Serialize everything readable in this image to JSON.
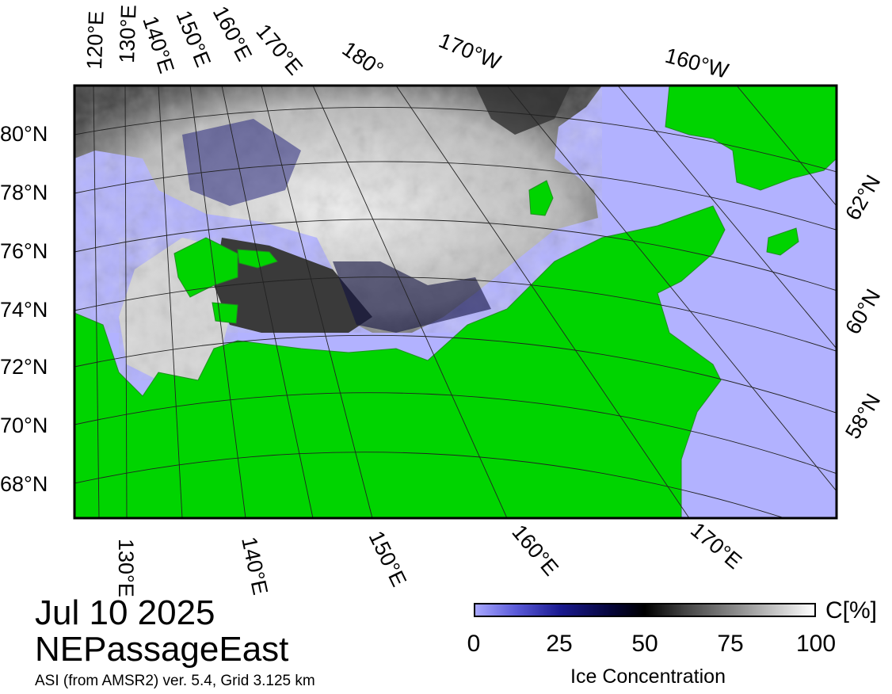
{
  "map": {
    "date": "Jul 10 2025",
    "region": "NEPassageEast",
    "source": "ASI (from AMSR2) ver. 5.4,  Grid 3.125 km",
    "colors": {
      "land": "#00d400",
      "open_water": "#b2b2ff",
      "ice": "#ffffff",
      "frame": "#000000"
    },
    "top_longitude_labels": [
      "120°E",
      "130°E",
      "140°E",
      "150°E",
      "160°E",
      "170°E",
      "180°",
      "170°W",
      "160°W"
    ],
    "bottom_longitude_labels": [
      "130°E",
      "140°E",
      "150°E",
      "160°E",
      "170°E"
    ],
    "left_latitude_labels": [
      "80°N",
      "78°N",
      "76°N",
      "74°N",
      "72°N",
      "70°N",
      "68°N"
    ],
    "right_latitude_labels": [
      "62°N",
      "60°N",
      "58°N"
    ]
  },
  "colorbar": {
    "title": "Ice Concentration",
    "unit": "C[%]",
    "min": 0,
    "max": 100,
    "ticks": [
      "0",
      "25",
      "50",
      "75",
      "100"
    ],
    "colors": [
      "#a8a8ff",
      "#1a1a90",
      "#000000",
      "#9a9a9a",
      "#ffffff"
    ]
  }
}
